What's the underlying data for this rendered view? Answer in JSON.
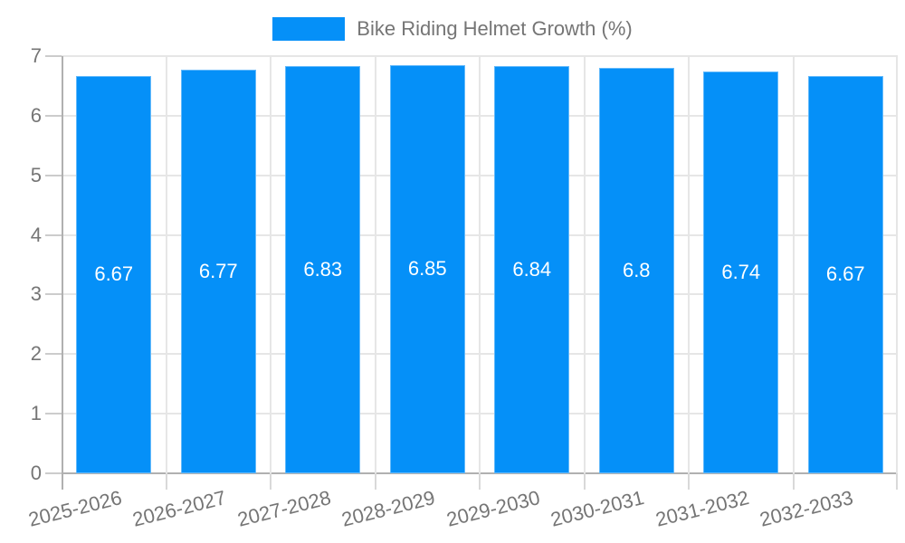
{
  "chart_data": {
    "type": "bar",
    "title": "Bike Riding Helmet Growth (%)",
    "legend": {
      "position": "top",
      "label": "Bike Riding Helmet Growth (%)"
    },
    "categories": [
      "2025-2026",
      "2026-2027",
      "2027-2028",
      "2028-2029",
      "2029-2030",
      "2030-2031",
      "2031-2032",
      "2032-2033"
    ],
    "values": [
      6.67,
      6.77,
      6.83,
      6.85,
      6.84,
      6.8,
      6.74,
      6.67
    ],
    "value_labels": [
      "6.67",
      "6.77",
      "6.83",
      "6.85",
      "6.84",
      "6.8",
      "6.74",
      "6.67"
    ],
    "xlabel": "",
    "ylabel": "",
    "ylim": [
      0,
      7
    ],
    "yticks": [
      0,
      1,
      2,
      3,
      4,
      5,
      6,
      7
    ],
    "grid": true,
    "colors": {
      "bar": "#0590F8",
      "gridline": "#e6e6e6",
      "axis_line": "#b0b0b0",
      "tick_mark": "#cccccc",
      "tick_text": "#757575",
      "legend_text": "#757575",
      "value_label_text": "#ffffff",
      "background": "#ffffff"
    }
  }
}
